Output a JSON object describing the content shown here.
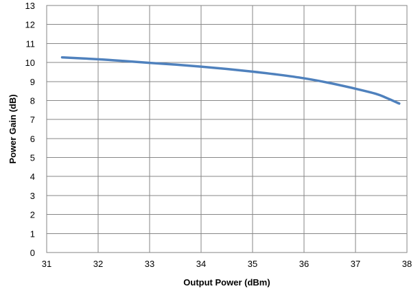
{
  "chart_data": {
    "type": "line",
    "title": "",
    "xlabel": "Output Power (dBm)",
    "ylabel": "Power Gain (dB)",
    "xlim": [
      31,
      38
    ],
    "ylim": [
      0,
      13
    ],
    "xticks": [
      "31",
      "32",
      "33",
      "34",
      "35",
      "36",
      "37",
      "38"
    ],
    "yticks": [
      "0",
      "1",
      "2",
      "3",
      "4",
      "5",
      "6",
      "7",
      "8",
      "9",
      "10",
      "11",
      "12",
      "13"
    ],
    "grid": true,
    "legend": "none",
    "series": [
      {
        "color": "#4f81bd",
        "x": [
          31.3,
          32.0,
          32.5,
          33.0,
          33.5,
          34.0,
          34.5,
          35.0,
          35.5,
          36.0,
          36.5,
          37.0,
          37.4,
          37.6,
          37.85
        ],
        "y": [
          10.27,
          10.17,
          10.08,
          9.98,
          9.89,
          9.78,
          9.66,
          9.52,
          9.36,
          9.17,
          8.92,
          8.62,
          8.35,
          8.14,
          7.84
        ]
      }
    ]
  }
}
